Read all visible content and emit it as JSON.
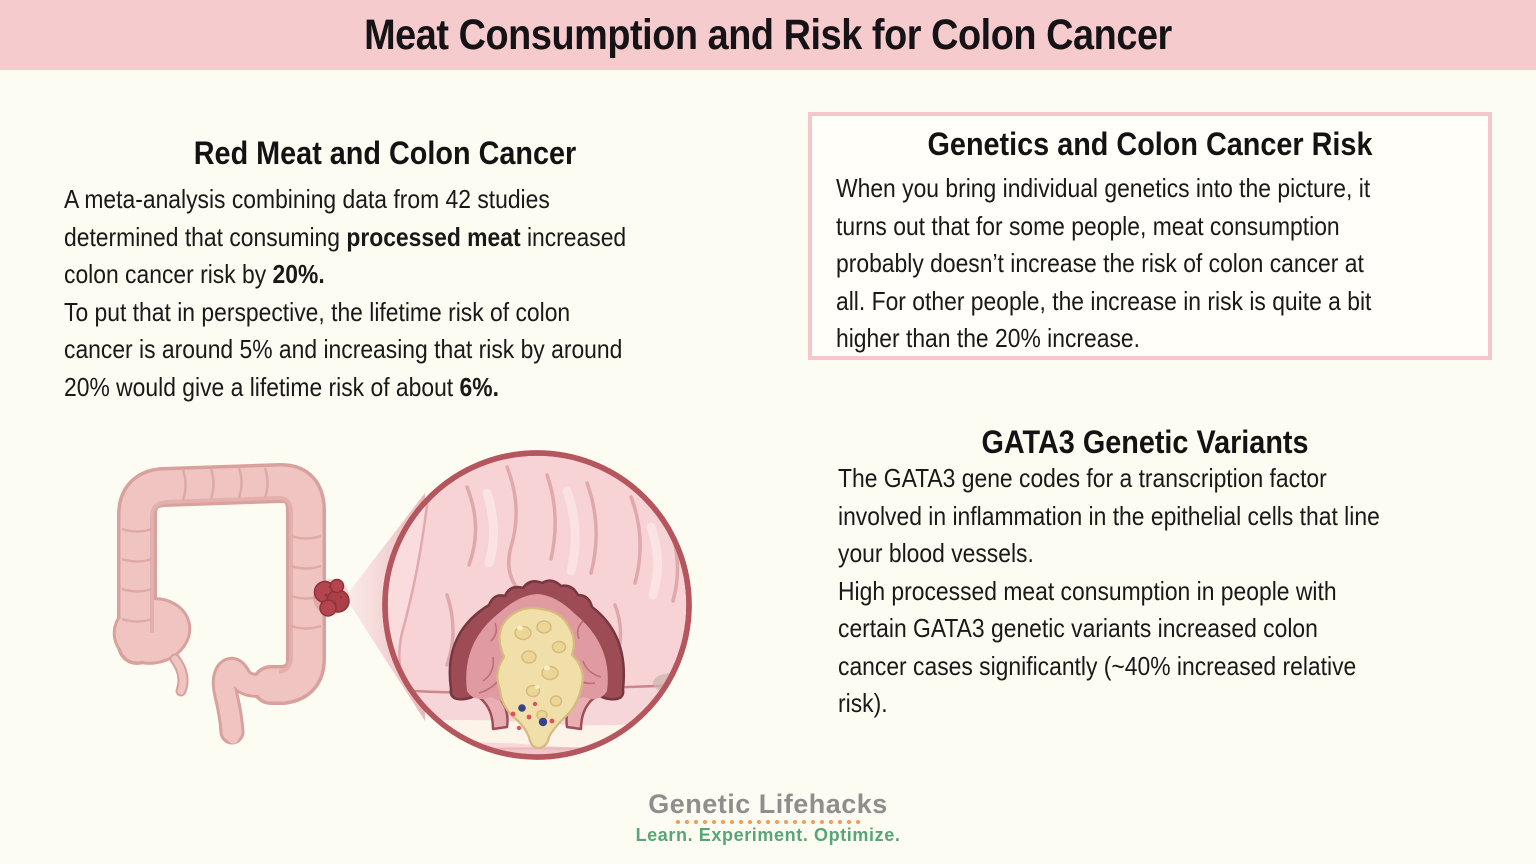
{
  "theme": {
    "page-bg": "#fdfcf3",
    "banner-bg": "#f5cbce",
    "box-bg": "#fffef8",
    "box-border": "#f5c6ca",
    "text": "#1b1818",
    "logo-gray": "#8e8e8c",
    "logo-orange": "#f1a05a",
    "logo-green": "#58a577",
    "colon-pink": "#efc4c1",
    "polyp-red": "#b4454e",
    "circle-border": "#b5565e"
  },
  "banner": {
    "title": "Meat Consumption and Risk for Colon Cancer"
  },
  "red_meat": {
    "heading": "Red Meat and Colon Cancer",
    "paragraph": [
      {
        "t": "A meta-analysis combining data from 42 studies\ndetermined that consuming "
      },
      {
        "t": "processed meat",
        "b": true
      },
      {
        "t": " increased\ncolon cancer risk by "
      },
      {
        "t": "20%.",
        "b": true
      },
      {
        "t": "\nTo put that in perspective, the lifetime risk of colon\ncancer is around 5% and increasing that risk by around\n20% would give a lifetime risk of about "
      },
      {
        "t": "6%.",
        "b": true
      }
    ]
  },
  "genetics_box": {
    "heading": "Genetics and Colon Cancer Risk",
    "text": "When you bring individual genetics into the picture, it\nturns out that for some people, meat consumption\nprobably doesn’t increase the risk of colon cancer at\nall. For other people, the increase in risk is quite a bit\nhigher than the 20% increase."
  },
  "gata3": {
    "heading": "GATA3 Genetic Variants",
    "text": "The GATA3 gene codes for a transcription factor\ninvolved in inflammation in the epithelial cells that line\nyour blood vessels.\nHigh processed meat consumption in people with\ncertain GATA3 genetic variants increased colon\ncancer cases significantly (~40% increased relative\nrisk)."
  },
  "logo": {
    "title": "Genetic Lifehacks",
    "tagline": "Learn. Experiment. Optimize."
  }
}
